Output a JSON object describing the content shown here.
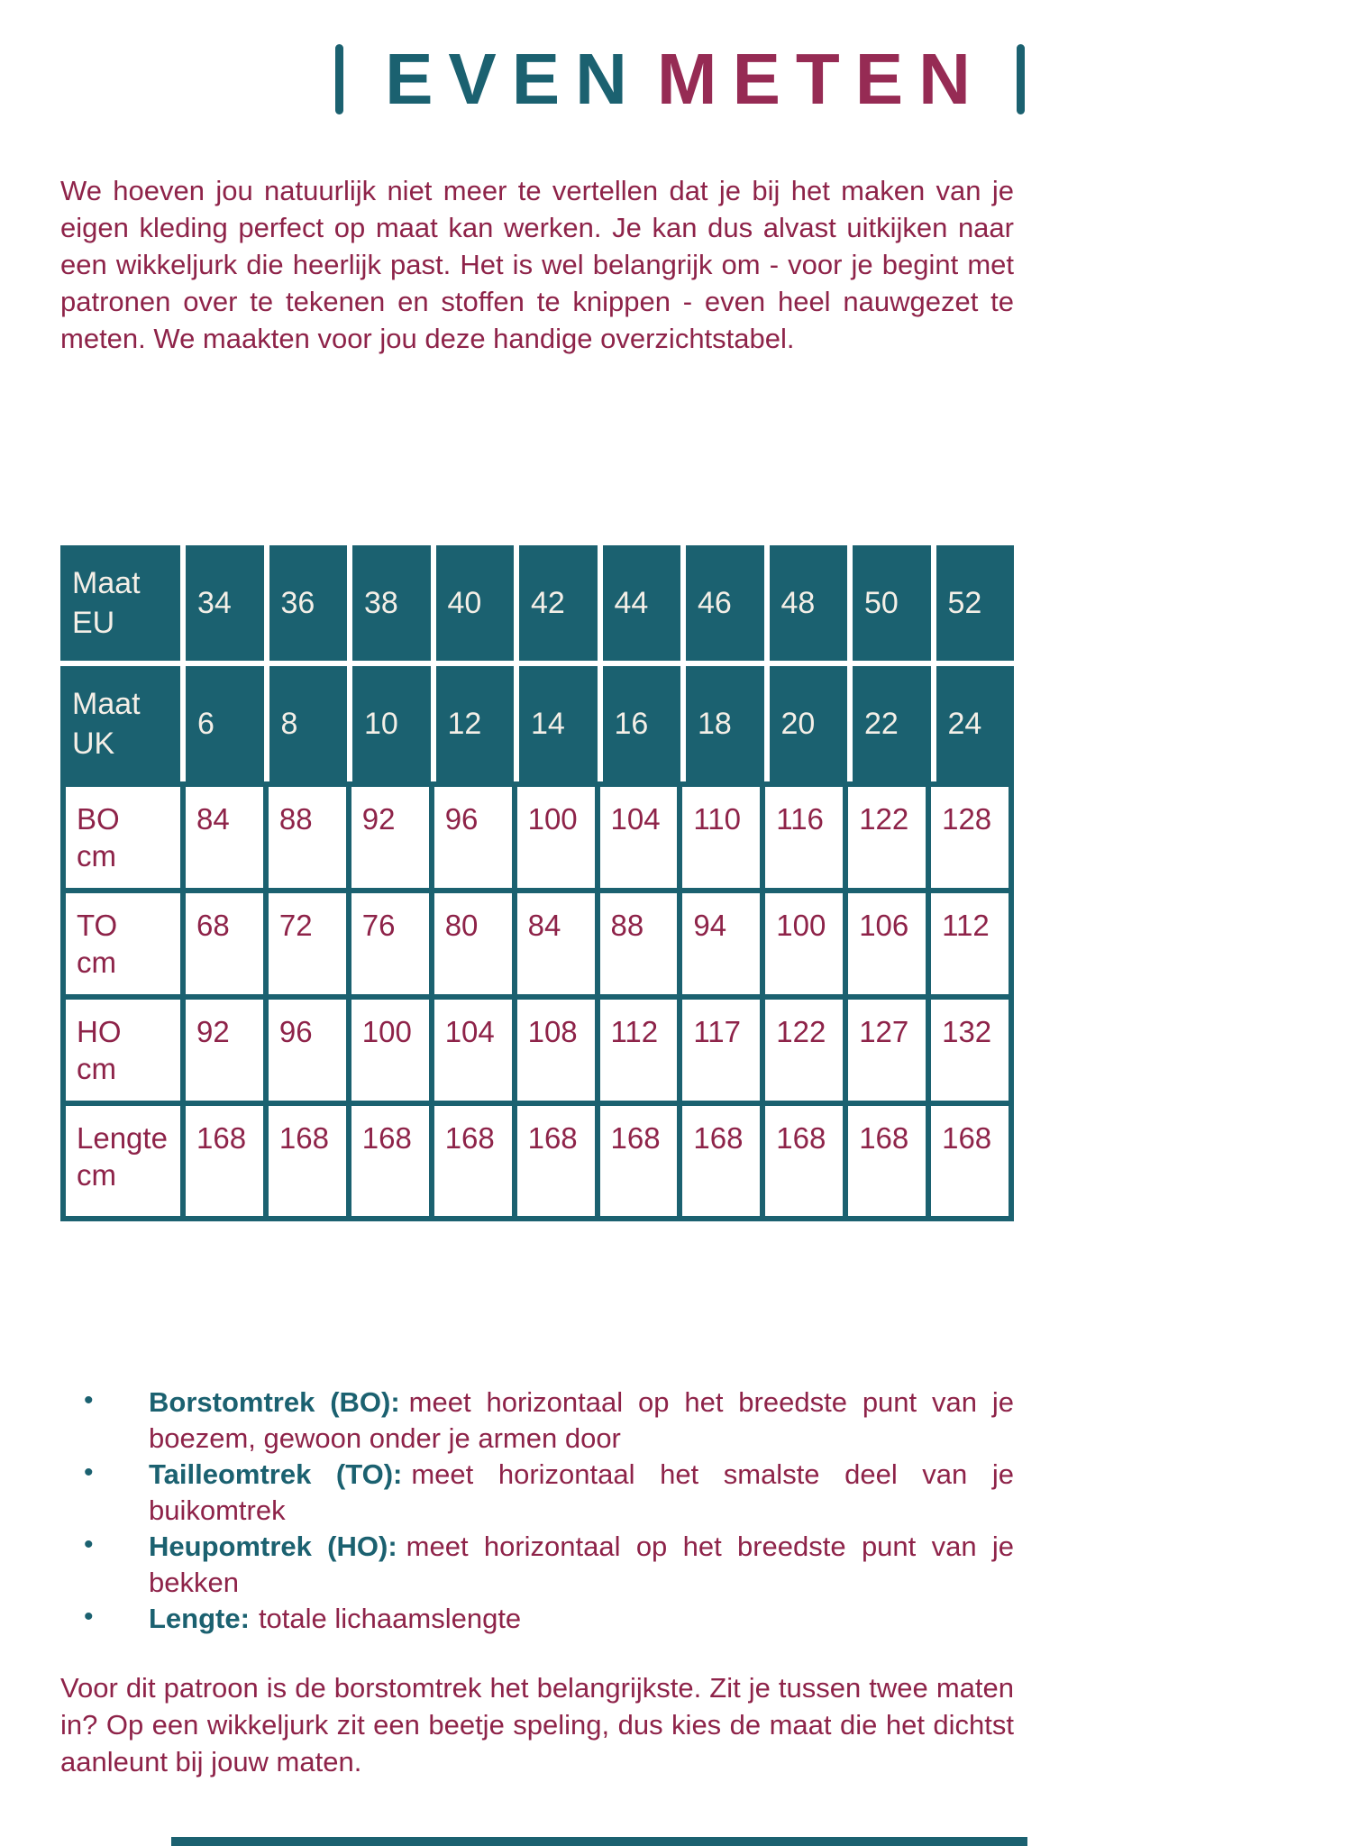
{
  "colors": {
    "teal": "#1b6170",
    "maroon": "#8e2349",
    "title_maroon": "#962b54",
    "header_text": "#f4efe7"
  },
  "title": {
    "word1": "EVEN",
    "word2": "METEN"
  },
  "intro": "We hoeven jou natuurlijk niet meer te vertellen dat je bij het maken van je eigen kleding perfect op maat kan werken. Je kan dus alvast uitkijken naar een wikkeljurk die heerlijk past. Het is wel belangrijk om - voor je begint met patronen over te tekenen en stoffen te knippen - even heel nauwgezet te meten. We maakten voor jou deze handige overzichtstabel.",
  "size_table": {
    "header_rows": [
      {
        "label": "Maat EU",
        "values": [
          "34",
          "36",
          "38",
          "40",
          "42",
          "44",
          "46",
          "48",
          "50",
          "52"
        ]
      },
      {
        "label": "Maat UK",
        "values": [
          "6",
          "8",
          "10",
          "12",
          "14",
          "16",
          "18",
          "20",
          "22",
          "24"
        ]
      }
    ],
    "body_rows": [
      {
        "label": "BO cm",
        "values": [
          "84",
          "88",
          "92",
          "96",
          "100",
          "104",
          "110",
          "116",
          "122",
          "128"
        ]
      },
      {
        "label": "TO cm",
        "values": [
          "68",
          "72",
          "76",
          "80",
          "84",
          "88",
          "94",
          "100",
          "106",
          "112"
        ]
      },
      {
        "label": "HO cm",
        "values": [
          "92",
          "96",
          "100",
          "104",
          "108",
          "112",
          "117",
          "122",
          "127",
          "132"
        ]
      },
      {
        "label": "Lengte cm",
        "values": [
          "168",
          "168",
          "168",
          "168",
          "168",
          "168",
          "168",
          "168",
          "168",
          "168"
        ]
      }
    ]
  },
  "bullets": [
    {
      "term": "Borstomtrek (BO):",
      "definition": "meet horizontaal op het breedste punt van je boezem, gewoon onder je armen door"
    },
    {
      "term": "Tailleomtrek (TO):",
      "definition": "meet horizontaal het smalste deel van je buikomtrek"
    },
    {
      "term": "Heupomtrek (HO):",
      "definition": "meet horizontaal op het breedste punt van je bekken"
    },
    {
      "term": "Lengte:",
      "definition": "totale lichaamslengte"
    }
  ],
  "closing": "Voor dit patroon is de borstomtrek het belangrijkste. Zit je tussen twee maten in? Op een wikkeljurk zit een beetje speling, dus kies de maat die het dichtst aanleunt bij jouw maten."
}
